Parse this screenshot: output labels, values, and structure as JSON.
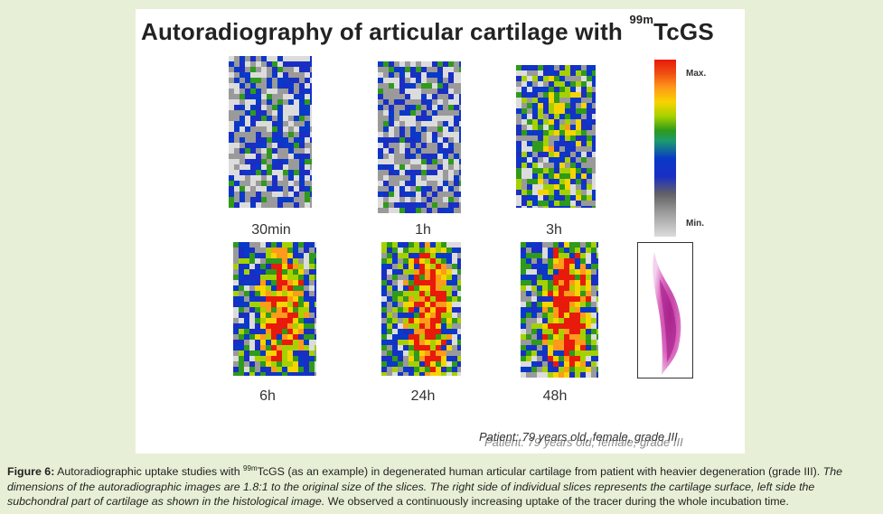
{
  "figure": {
    "title_main": "Autoradiography of articular cartilage with ",
    "title_sup": "99m",
    "title_end": "TcGS",
    "timepoints": [
      "30min",
      "1h",
      "3h",
      "6h",
      "24h",
      "48h"
    ],
    "scale_max_label": "Max.",
    "scale_min_label": "Min.",
    "scale_colors": [
      "#e81a0b",
      "#ff9a1a",
      "#f7d400",
      "#2f9a1b",
      "#0a38c8",
      "#9a9a9a",
      "#dcdcdc"
    ],
    "patient_note": "Patient: 79 years old, female, grade III"
  },
  "caption": {
    "label": "Figure 6:",
    "text1": " Autoradiographic uptake studies with ",
    "sup": "99m",
    "text2": "TcGS (as an example) in degenerated human articular cartilage from patient with heavier degeneration (grade III). ",
    "italic": "The dimensions of the autoradiographic images are 1.8:1 to the original size of the slices. The right side of individual slices represents the cartilage surface, left side the subchondral part of cartilage as shown in the histological image.",
    "text3": " We observed a continuously increasing uptake of the tracer during the whole incubation time."
  }
}
